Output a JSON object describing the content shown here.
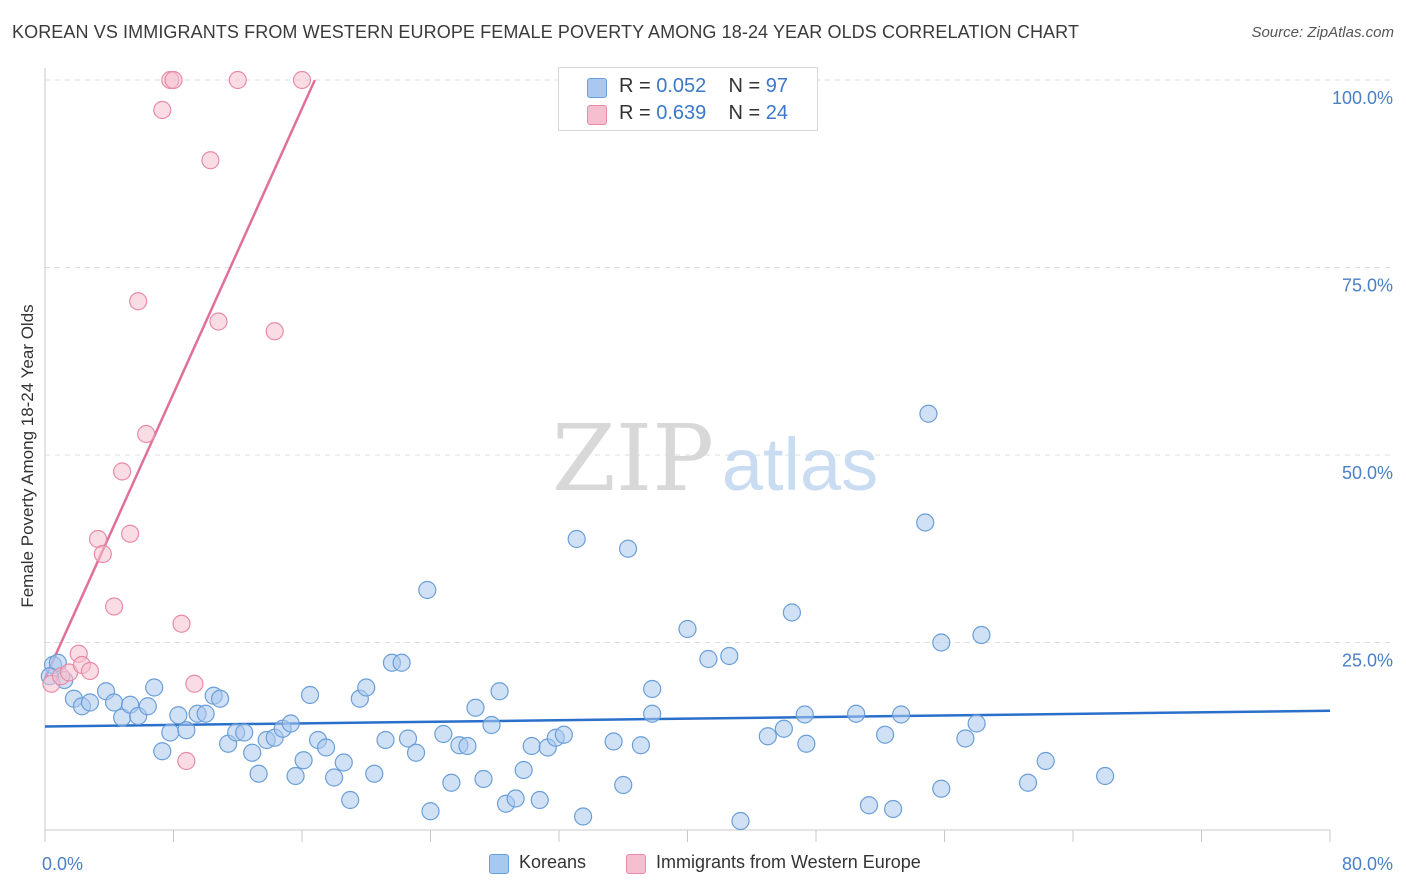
{
  "title": "KOREAN VS IMMIGRANTS FROM WESTERN EUROPE FEMALE POVERTY AMONG 18-24 YEAR OLDS CORRELATION CHART",
  "source": "Source: ZipAtlas.com",
  "watermark": {
    "zip": "ZIP",
    "atlas": "atlas"
  },
  "colors": {
    "koreans_fill": "#a9c8ef",
    "koreans_stroke": "#6a9ed8",
    "koreans_line": "#2a6fc9",
    "immigrants_fill": "#f6bfd0",
    "immigrants_stroke": "#e88aa8",
    "immigrants_line": "#e0709a",
    "axis_text": "#4a7fc8",
    "grid": "#dddddd"
  },
  "legend": {
    "r_label": "R =",
    "n_label": "N =",
    "koreans": {
      "r": "0.052",
      "n": "97"
    },
    "immigrants": {
      "r": "0.639",
      "n": "24"
    }
  },
  "chart_data": {
    "type": "scatter",
    "title": "KOREAN VS IMMIGRANTS FROM WESTERN EUROPE FEMALE POVERTY AMONG 18-24 YEAR OLDS CORRELATION CHART",
    "xlabel": "",
    "ylabel": "Female Poverty Among 18-24 Year Olds",
    "xlim": [
      0,
      80
    ],
    "ylim": [
      0,
      100
    ],
    "x_tick_labels": [
      "0.0%",
      "80.0%"
    ],
    "y_ticks": [
      25,
      50,
      75,
      100
    ],
    "y_tick_labels": [
      "25.0%",
      "50.0%",
      "75.0%",
      "100.0%"
    ],
    "grid": true,
    "series": [
      {
        "name": "Koreans",
        "r": 0.052,
        "n": 97,
        "trend": {
          "x": [
            0,
            80
          ],
          "y": [
            13.8,
            15.9
          ]
        },
        "points": [
          [
            0.5,
            22
          ],
          [
            0.8,
            22.3
          ],
          [
            1.2,
            20
          ],
          [
            1.8,
            17.5
          ],
          [
            2.3,
            16.5
          ],
          [
            2.8,
            17
          ],
          [
            3.8,
            18.5
          ],
          [
            4.3,
            17
          ],
          [
            4.8,
            15
          ],
          [
            5.3,
            16.7
          ],
          [
            5.8,
            15.2
          ],
          [
            6.4,
            16.5
          ],
          [
            6.8,
            19
          ],
          [
            7.3,
            10.5
          ],
          [
            7.8,
            13
          ],
          [
            8.3,
            15.3
          ],
          [
            8.8,
            13.3
          ],
          [
            9.5,
            15.5
          ],
          [
            10,
            15.5
          ],
          [
            10.5,
            17.9
          ],
          [
            10.9,
            17.5
          ],
          [
            11.4,
            11.5
          ],
          [
            11.9,
            13
          ],
          [
            12.4,
            13
          ],
          [
            12.9,
            10.3
          ],
          [
            13.3,
            7.5
          ],
          [
            13.8,
            12
          ],
          [
            14.3,
            12.3
          ],
          [
            14.8,
            13.5
          ],
          [
            15.3,
            14.2
          ],
          [
            15.6,
            7.2
          ],
          [
            16.1,
            9.3
          ],
          [
            16.5,
            18
          ],
          [
            17,
            12
          ],
          [
            17.5,
            11
          ],
          [
            18,
            7
          ],
          [
            18.6,
            9
          ],
          [
            19,
            4
          ],
          [
            19.6,
            17.5
          ],
          [
            20,
            19
          ],
          [
            20.5,
            7.5
          ],
          [
            21.2,
            12
          ],
          [
            21.6,
            22.3
          ],
          [
            22.2,
            22.3
          ],
          [
            22.6,
            12.2
          ],
          [
            23.1,
            10.3
          ],
          [
            23.8,
            32
          ],
          [
            24,
            2.5
          ],
          [
            24.8,
            12.8
          ],
          [
            25.3,
            6.3
          ],
          [
            25.8,
            11.3
          ],
          [
            26.3,
            11.2
          ],
          [
            26.8,
            16.3
          ],
          [
            27.3,
            6.8
          ],
          [
            27.8,
            14
          ],
          [
            28.3,
            18.5
          ],
          [
            28.7,
            3.5
          ],
          [
            29.3,
            4.2
          ],
          [
            29.8,
            8
          ],
          [
            30.3,
            11.2
          ],
          [
            30.8,
            4
          ],
          [
            31.3,
            11
          ],
          [
            31.8,
            12.3
          ],
          [
            32.3,
            12.7
          ],
          [
            33.1,
            38.8
          ],
          [
            33.5,
            1.8
          ],
          [
            35.4,
            11.8
          ],
          [
            36,
            6
          ],
          [
            36.3,
            37.5
          ],
          [
            37.1,
            11.3
          ],
          [
            37.8,
            15.5
          ],
          [
            37.8,
            18.8
          ],
          [
            40,
            26.8
          ],
          [
            41.3,
            22.8
          ],
          [
            42.6,
            23.2
          ],
          [
            43.3,
            1.2
          ],
          [
            45,
            12.5
          ],
          [
            46,
            13.5
          ],
          [
            46.5,
            29
          ],
          [
            47.3,
            15.4
          ],
          [
            47.4,
            11.5
          ],
          [
            50.5,
            15.5
          ],
          [
            51.3,
            3.3
          ],
          [
            52.3,
            12.7
          ],
          [
            52.8,
            2.8
          ],
          [
            53.3,
            15.4
          ],
          [
            54.8,
            41
          ],
          [
            55,
            55.5
          ],
          [
            55.8,
            25
          ],
          [
            55.8,
            5.5
          ],
          [
            57.3,
            12.2
          ],
          [
            58,
            14.2
          ],
          [
            58.3,
            26
          ],
          [
            61.2,
            6.3
          ],
          [
            62.3,
            9.2
          ],
          [
            66,
            7.2
          ],
          [
            0.3,
            20.5
          ]
        ]
      },
      {
        "name": "Immigrants from Western Europe",
        "r": 0.639,
        "n": 24,
        "trend": {
          "x": [
            0,
            16.8
          ],
          "y": [
            20.2,
            100
          ]
        },
        "points": [
          [
            0.4,
            19.5
          ],
          [
            1,
            20.5
          ],
          [
            1.5,
            21
          ],
          [
            2.1,
            23.5
          ],
          [
            2.3,
            22
          ],
          [
            2.8,
            21.2
          ],
          [
            3.3,
            38.8
          ],
          [
            3.6,
            36.8
          ],
          [
            4.3,
            29.8
          ],
          [
            4.8,
            47.8
          ],
          [
            5.3,
            39.5
          ],
          [
            5.8,
            70.5
          ],
          [
            6.3,
            52.8
          ],
          [
            7.3,
            96
          ],
          [
            7.8,
            100
          ],
          [
            8,
            100
          ],
          [
            8.5,
            27.5
          ],
          [
            8.8,
            9.2
          ],
          [
            9.3,
            19.5
          ],
          [
            10.3,
            89.3
          ],
          [
            10.8,
            67.8
          ],
          [
            12,
            100
          ],
          [
            14.3,
            66.5
          ],
          [
            16,
            100
          ]
        ]
      }
    ]
  }
}
